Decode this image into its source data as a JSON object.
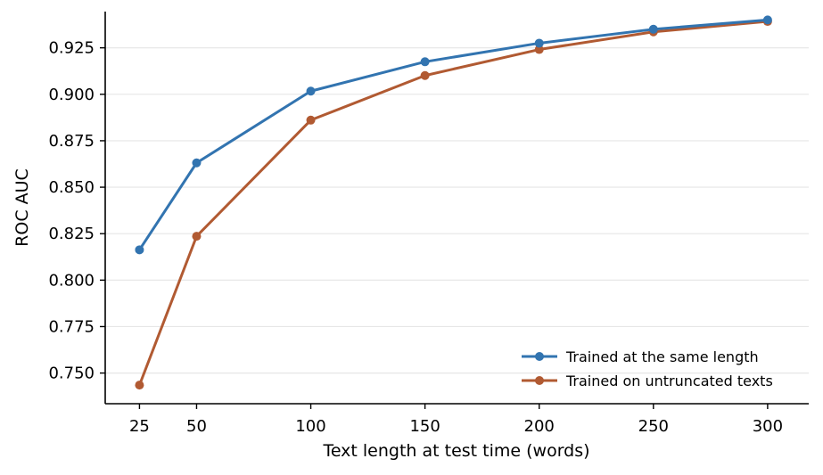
{
  "chart_data": {
    "type": "line",
    "xlabel": "Text length at test time (words)",
    "ylabel": "ROC AUC",
    "x": [
      25,
      50,
      100,
      150,
      200,
      250,
      300
    ],
    "x_ticks": [
      25,
      50,
      100,
      150,
      200,
      250,
      300
    ],
    "y_ticks": [
      0.75,
      0.775,
      0.8,
      0.825,
      0.85,
      0.875,
      0.9,
      0.925
    ],
    "xlim": [
      10,
      318
    ],
    "ylim": [
      0.7335,
      0.9445
    ],
    "grid": "horizontal",
    "legend_position": "bottom-right",
    "series": [
      {
        "name": "Trained at the same length",
        "color": "#3274b0",
        "values": [
          0.8163,
          0.8631,
          0.9017,
          0.9175,
          0.9275,
          0.935,
          0.94
        ]
      },
      {
        "name": "Trained on untruncated texts",
        "color": "#b15a32",
        "values": [
          0.7435,
          0.8236,
          0.8861,
          0.9101,
          0.9241,
          0.9336,
          0.9392
        ]
      }
    ]
  }
}
